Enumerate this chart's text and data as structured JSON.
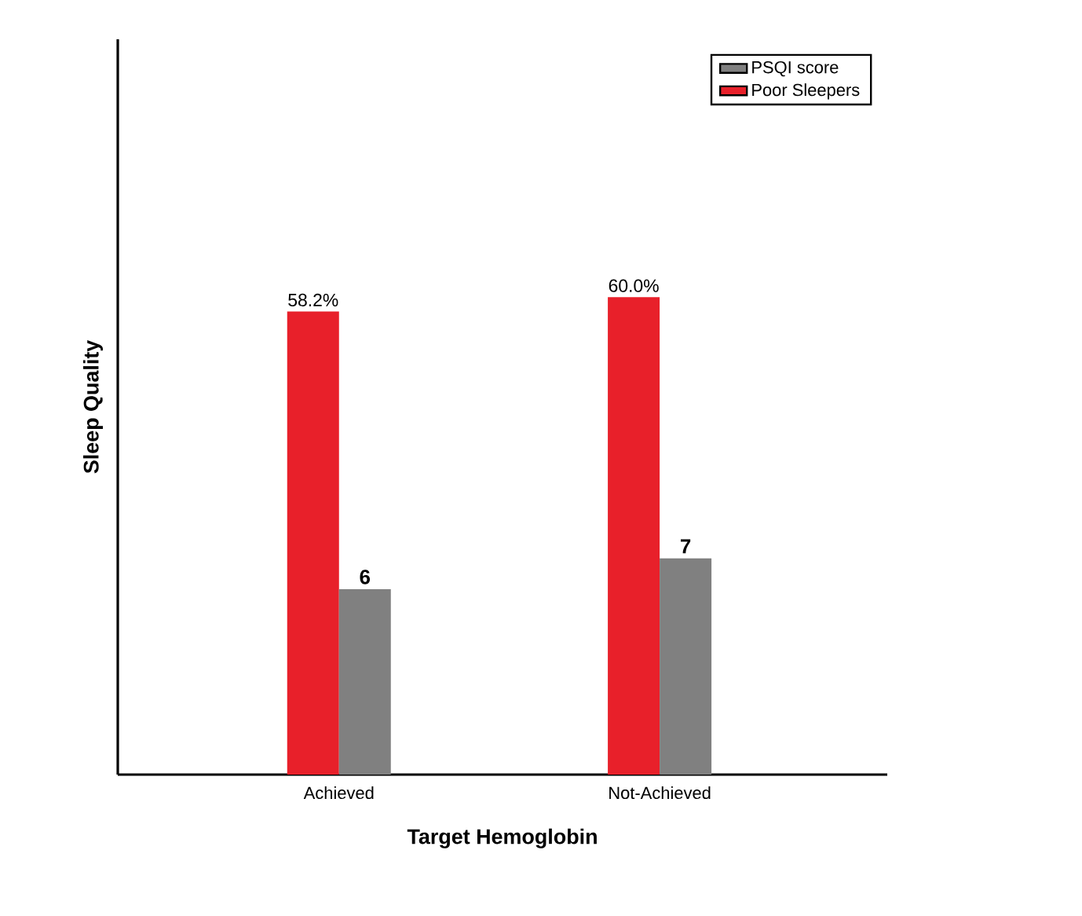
{
  "chart_data": {
    "type": "bar",
    "xlabel": "Target Hemoglobin",
    "ylabel": "Sleep Quality",
    "categories": [
      "Achieved",
      "Not-Achieved"
    ],
    "series": [
      {
        "name": "Poor Sleepers",
        "color": "#e8202a",
        "values": [
          58.2,
          60.0
        ],
        "value_labels": [
          "58.2%",
          "60.0%"
        ]
      },
      {
        "name": "PSQI score",
        "color": "#808080",
        "values": [
          6,
          7
        ],
        "value_labels": [
          "6",
          "7"
        ],
        "axis": "y2"
      }
    ],
    "legend": "top right"
  }
}
